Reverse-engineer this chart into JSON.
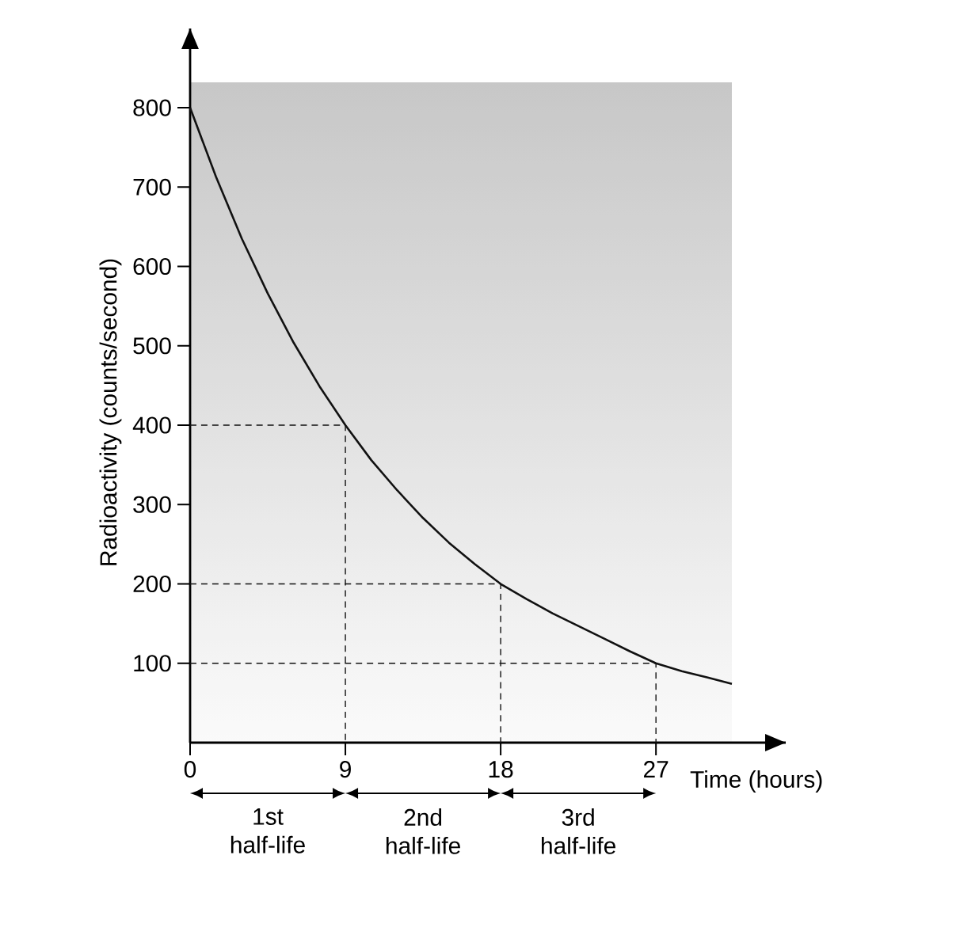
{
  "chart_data": {
    "type": "line",
    "xlabel": "Time (hours)",
    "ylabel": "Radioactivity (counts/second)",
    "xlim": [
      0,
      31.4
    ],
    "ylim": [
      0,
      832
    ],
    "xticks": [
      0,
      9,
      18,
      27
    ],
    "yticks": [
      100,
      200,
      300,
      400,
      500,
      600,
      700,
      800
    ],
    "grid": false,
    "marker": "none",
    "line_style": "solid",
    "series": [
      {
        "color": "#111111",
        "x": [
          0,
          1.5,
          3,
          4.5,
          6,
          7.5,
          9,
          10.5,
          12,
          13.5,
          15,
          16.5,
          18,
          19.5,
          21,
          22.5,
          24,
          25.5,
          27,
          28.5,
          30,
          31.4
        ],
        "values": [
          800,
          713,
          635,
          566,
          504,
          449,
          400,
          356,
          318,
          283,
          252,
          225,
          200,
          181,
          163,
          147,
          131,
          115,
          100,
          90,
          82,
          74
        ]
      },
      {
        "color": "#111111",
        "line_style": "dashed",
        "x": [
          0,
          9,
          9
        ],
        "values": [
          400,
          400,
          0
        ]
      },
      {
        "color": "#111111",
        "line_style": "dashed",
        "x": [
          0,
          18,
          18
        ],
        "values": [
          200,
          200,
          0
        ]
      },
      {
        "color": "#111111",
        "line_style": "dashed",
        "x": [
          0,
          27,
          27
        ],
        "values": [
          100,
          100,
          0
        ]
      }
    ],
    "annotations": [
      "1st half-life",
      "2nd half-life",
      "3rd half-life"
    ]
  }
}
